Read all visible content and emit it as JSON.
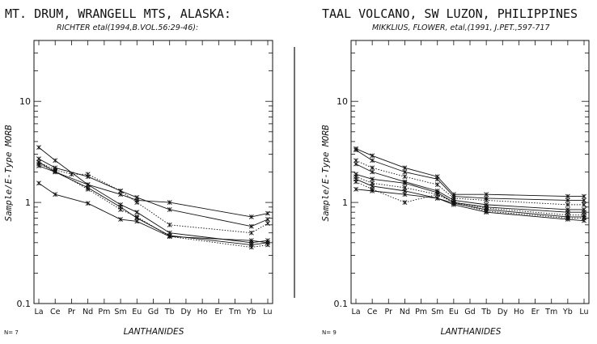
{
  "chart_data": [
    {
      "type": "line",
      "title": "MT. DRUM, WRANGELL MTS, ALASKA:",
      "subtitle": "RICHTER etal(1994,B.VOL.56:29-46):",
      "xlabel": "LANTHANIDES",
      "ylabel": "Sample/E-Type MORB",
      "yscale": "log",
      "ylim": [
        0.1,
        40
      ],
      "yticks": [
        0.1,
        1,
        10
      ],
      "ytick_labels": [
        "0.1",
        "1",
        "10"
      ],
      "categories": [
        "La",
        "Ce",
        "Pr",
        "Nd",
        "Pm",
        "Sm",
        "Eu",
        "Gd",
        "Tb",
        "Dy",
        "Ho",
        "Er",
        "Tm",
        "Yb",
        "Lu"
      ],
      "n_label": "N= 7",
      "series": [
        {
          "points": [
            [
              0,
              3.5
            ],
            [
              1,
              2.6
            ],
            [
              3,
              1.5
            ],
            [
              5,
              1.2
            ],
            [
              6,
              1.05
            ],
            [
              8,
              1.0
            ],
            [
              13,
              0.72
            ],
            [
              14,
              0.78
            ]
          ],
          "style": "solid"
        },
        {
          "points": [
            [
              0,
              2.7
            ],
            [
              1,
              2.2
            ],
            [
              3,
              1.8
            ],
            [
              5,
              1.3
            ],
            [
              6,
              1.12
            ],
            [
              8,
              0.85
            ],
            [
              13,
              0.58
            ],
            [
              14,
              0.68
            ]
          ],
          "style": "solid"
        },
        {
          "points": [
            [
              0,
              2.5
            ],
            [
              1,
              2.1
            ],
            [
              2,
              1.9
            ],
            [
              3,
              1.9
            ],
            [
              5,
              1.3
            ],
            [
              6,
              1.0
            ],
            [
              8,
              0.6
            ],
            [
              13,
              0.5
            ],
            [
              14,
              0.62
            ]
          ],
          "style": "dotted"
        },
        {
          "points": [
            [
              0,
              2.3
            ],
            [
              1,
              2.0
            ],
            [
              3,
              1.5
            ],
            [
              5,
              0.95
            ],
            [
              6,
              0.8
            ],
            [
              8,
              0.5
            ],
            [
              13,
              0.4
            ],
            [
              14,
              0.42
            ]
          ],
          "style": "solid"
        },
        {
          "points": [
            [
              0,
              2.4
            ],
            [
              1,
              2.05
            ],
            [
              3,
              1.35
            ],
            [
              5,
              0.85
            ],
            [
              6,
              0.72
            ],
            [
              8,
              0.46
            ],
            [
              13,
              0.36
            ],
            [
              14,
              0.38
            ]
          ],
          "style": "dotted"
        },
        {
          "points": [
            [
              0,
              2.5
            ],
            [
              1,
              2.0
            ],
            [
              3,
              1.4
            ],
            [
              5,
              0.9
            ],
            [
              6,
              0.7
            ],
            [
              8,
              0.47
            ],
            [
              13,
              0.38
            ],
            [
              14,
              0.4
            ]
          ],
          "style": "solid"
        },
        {
          "points": [
            [
              0,
              1.55
            ],
            [
              1,
              1.2
            ],
            [
              3,
              0.98
            ],
            [
              5,
              0.68
            ],
            [
              6,
              0.65
            ],
            [
              8,
              0.46
            ],
            [
              13,
              0.42
            ],
            [
              14,
              0.4
            ]
          ],
          "style": "solid"
        }
      ]
    },
    {
      "type": "line",
      "title": "TAAL VOLCANO, SW LUZON, PHILIPPINES",
      "subtitle": "MIKKLIUS, FLOWER, etal,(1991, J.PET.,597-717",
      "xlabel": "LANTHANIDES",
      "ylabel": "Sample/E-Type MORB",
      "yscale": "log",
      "ylim": [
        0.1,
        40
      ],
      "yticks": [
        0.1,
        1,
        10
      ],
      "ytick_labels": [
        "0.1",
        "1",
        "10"
      ],
      "categories": [
        "La",
        "Ce",
        "Pr",
        "Nd",
        "Pm",
        "Sm",
        "Eu",
        "Gd",
        "Tb",
        "Dy",
        "Ho",
        "Er",
        "Tm",
        "Yb",
        "Lu"
      ],
      "n_label": "N= 9",
      "series": [
        {
          "points": [
            [
              0,
              3.4
            ],
            [
              1,
              2.9
            ],
            [
              3,
              2.2
            ],
            [
              5,
              1.8
            ],
            [
              6,
              1.2
            ],
            [
              8,
              1.2
            ],
            [
              13,
              1.15
            ],
            [
              14,
              1.15
            ]
          ],
          "style": "solid"
        },
        {
          "points": [
            [
              0,
              3.3
            ],
            [
              1,
              2.6
            ],
            [
              3,
              2.0
            ],
            [
              5,
              1.7
            ],
            [
              6,
              1.15
            ],
            [
              8,
              1.1
            ],
            [
              13,
              1.05
            ],
            [
              14,
              1.05
            ]
          ],
          "style": "solid"
        },
        {
          "points": [
            [
              0,
              2.6
            ],
            [
              1,
              2.2
            ],
            [
              3,
              1.8
            ],
            [
              5,
              1.5
            ],
            [
              6,
              1.1
            ],
            [
              8,
              1.05
            ],
            [
              13,
              0.95
            ],
            [
              14,
              0.95
            ]
          ],
          "style": "dotted"
        },
        {
          "points": [
            [
              0,
              2.4
            ],
            [
              1,
              2.0
            ],
            [
              3,
              1.6
            ],
            [
              5,
              1.3
            ],
            [
              6,
              1.05
            ],
            [
              8,
              0.95
            ],
            [
              13,
              0.85
            ],
            [
              14,
              0.85
            ]
          ],
          "style": "solid"
        },
        {
          "points": [
            [
              0,
              1.9
            ],
            [
              1,
              1.7
            ],
            [
              3,
              1.55
            ],
            [
              5,
              1.25
            ],
            [
              6,
              1.0
            ],
            [
              8,
              0.9
            ],
            [
              13,
              0.8
            ],
            [
              14,
              0.8
            ]
          ],
          "style": "solid"
        },
        {
          "points": [
            [
              0,
              1.8
            ],
            [
              1,
              1.55
            ],
            [
              3,
              1.4
            ],
            [
              5,
              1.2
            ],
            [
              6,
              1.0
            ],
            [
              8,
              0.88
            ],
            [
              13,
              0.75
            ],
            [
              14,
              0.75
            ]
          ],
          "style": "dotted"
        },
        {
          "points": [
            [
              0,
              1.7
            ],
            [
              1,
              1.45
            ],
            [
              3,
              1.3
            ],
            [
              5,
              1.1
            ],
            [
              6,
              0.98
            ],
            [
              8,
              0.85
            ],
            [
              13,
              0.72
            ],
            [
              14,
              0.72
            ]
          ],
          "style": "solid"
        },
        {
          "points": [
            [
              0,
              1.6
            ],
            [
              1,
              1.35
            ],
            [
              3,
              1.0
            ],
            [
              5,
              1.2
            ],
            [
              6,
              1.0
            ],
            [
              8,
              0.82
            ],
            [
              13,
              0.7
            ],
            [
              14,
              0.7
            ]
          ],
          "style": "dotted"
        },
        {
          "points": [
            [
              0,
              1.35
            ],
            [
              1,
              1.3
            ],
            [
              3,
              1.2
            ],
            [
              5,
              1.1
            ],
            [
              6,
              0.95
            ],
            [
              8,
              0.8
            ],
            [
              13,
              0.68
            ],
            [
              14,
              0.66
            ]
          ],
          "style": "solid"
        }
      ]
    }
  ]
}
